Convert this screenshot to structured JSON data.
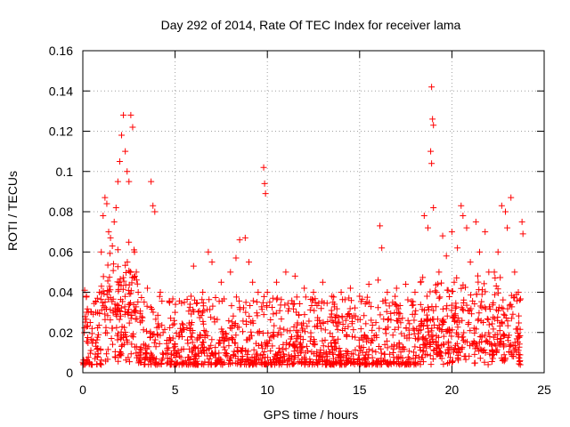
{
  "chart_data": {
    "type": "scatter",
    "title": "Day 292 of 2014, Rate Of TEC Index for receiver lama",
    "xlabel": "GPS time / hours",
    "ylabel": "ROTI / TECUs",
    "xlim": [
      0,
      25
    ],
    "ylim": [
      0,
      0.16
    ],
    "xticks": [
      0,
      5,
      10,
      15,
      20,
      25
    ],
    "xtick_labels": [
      "0",
      "5",
      "10",
      "15",
      "20",
      "25"
    ],
    "yticks": [
      0,
      0.02,
      0.04,
      0.06,
      0.08,
      0.1,
      0.12,
      0.14,
      0.16
    ],
    "ytick_labels": [
      "0",
      "0.02",
      "0.04",
      "0.06",
      "0.08",
      "0.1",
      "0.12",
      "0.14",
      "0.16"
    ],
    "grid": true,
    "marker": "+",
    "marker_color": "#ff0000",
    "series": [
      {
        "name": "ROTI",
        "points": [
          [
            0.1,
            0.041
          ],
          [
            0.2,
            0.038
          ],
          [
            0.3,
            0.03
          ],
          [
            0.4,
            0.025
          ],
          [
            0.5,
            0.022
          ],
          [
            0.7,
            0.03
          ],
          [
            0.9,
            0.04
          ],
          [
            1.0,
            0.06
          ],
          [
            1.1,
            0.078
          ],
          [
            1.2,
            0.087
          ],
          [
            1.3,
            0.084
          ],
          [
            1.4,
            0.07
          ],
          [
            1.5,
            0.067
          ],
          [
            1.6,
            0.063
          ],
          [
            1.7,
            0.075
          ],
          [
            1.8,
            0.082
          ],
          [
            1.9,
            0.095
          ],
          [
            2.0,
            0.105
          ],
          [
            2.1,
            0.118
          ],
          [
            2.2,
            0.128
          ],
          [
            2.3,
            0.11
          ],
          [
            2.4,
            0.1
          ],
          [
            2.5,
            0.095
          ],
          [
            2.6,
            0.128
          ],
          [
            2.7,
            0.122
          ],
          [
            2.8,
            0.06
          ],
          [
            2.9,
            0.05
          ],
          [
            3.0,
            0.04
          ],
          [
            3.5,
            0.042
          ],
          [
            3.7,
            0.095
          ],
          [
            3.8,
            0.083
          ],
          [
            3.9,
            0.08
          ],
          [
            4.2,
            0.04
          ],
          [
            5.0,
            0.03
          ],
          [
            5.5,
            0.035
          ],
          [
            6.0,
            0.053
          ],
          [
            6.5,
            0.04
          ],
          [
            6.8,
            0.06
          ],
          [
            7.0,
            0.055
          ],
          [
            7.5,
            0.045
          ],
          [
            8.0,
            0.05
          ],
          [
            8.3,
            0.057
          ],
          [
            8.5,
            0.066
          ],
          [
            8.8,
            0.067
          ],
          [
            9.0,
            0.055
          ],
          [
            9.2,
            0.045
          ],
          [
            9.5,
            0.04
          ],
          [
            9.8,
            0.102
          ],
          [
            9.85,
            0.094
          ],
          [
            9.9,
            0.089
          ],
          [
            10.0,
            0.04
          ],
          [
            10.3,
            0.037
          ],
          [
            10.5,
            0.045
          ],
          [
            11.0,
            0.05
          ],
          [
            11.5,
            0.048
          ],
          [
            12.0,
            0.042
          ],
          [
            12.5,
            0.04
          ],
          [
            13.0,
            0.045
          ],
          [
            13.5,
            0.038
          ],
          [
            14.0,
            0.04
          ],
          [
            14.5,
            0.042
          ],
          [
            15.0,
            0.038
          ],
          [
            15.5,
            0.044
          ],
          [
            16.0,
            0.046
          ],
          [
            16.1,
            0.073
          ],
          [
            16.2,
            0.062
          ],
          [
            16.5,
            0.04
          ],
          [
            17.0,
            0.042
          ],
          [
            17.5,
            0.044
          ],
          [
            18.0,
            0.04
          ],
          [
            18.3,
            0.045
          ],
          [
            18.5,
            0.078
          ],
          [
            18.7,
            0.072
          ],
          [
            18.85,
            0.11
          ],
          [
            18.9,
            0.142
          ],
          [
            18.95,
            0.126
          ],
          [
            19.0,
            0.123
          ],
          [
            18.9,
            0.104
          ],
          [
            19.0,
            0.082
          ],
          [
            19.3,
            0.05
          ],
          [
            19.5,
            0.068
          ],
          [
            19.7,
            0.058
          ],
          [
            20.0,
            0.07
          ],
          [
            20.3,
            0.062
          ],
          [
            20.5,
            0.083
          ],
          [
            20.6,
            0.078
          ],
          [
            20.8,
            0.072
          ],
          [
            21.0,
            0.055
          ],
          [
            21.3,
            0.075
          ],
          [
            21.5,
            0.06
          ],
          [
            21.8,
            0.07
          ],
          [
            22.0,
            0.05
          ],
          [
            22.3,
            0.05
          ],
          [
            22.5,
            0.06
          ],
          [
            22.7,
            0.083
          ],
          [
            22.9,
            0.08
          ],
          [
            23.0,
            0.072
          ],
          [
            23.2,
            0.087
          ],
          [
            23.4,
            0.05
          ],
          [
            23.6,
            0.04
          ],
          [
            23.8,
            0.075
          ],
          [
            23.85,
            0.069
          ]
        ]
      }
    ]
  }
}
